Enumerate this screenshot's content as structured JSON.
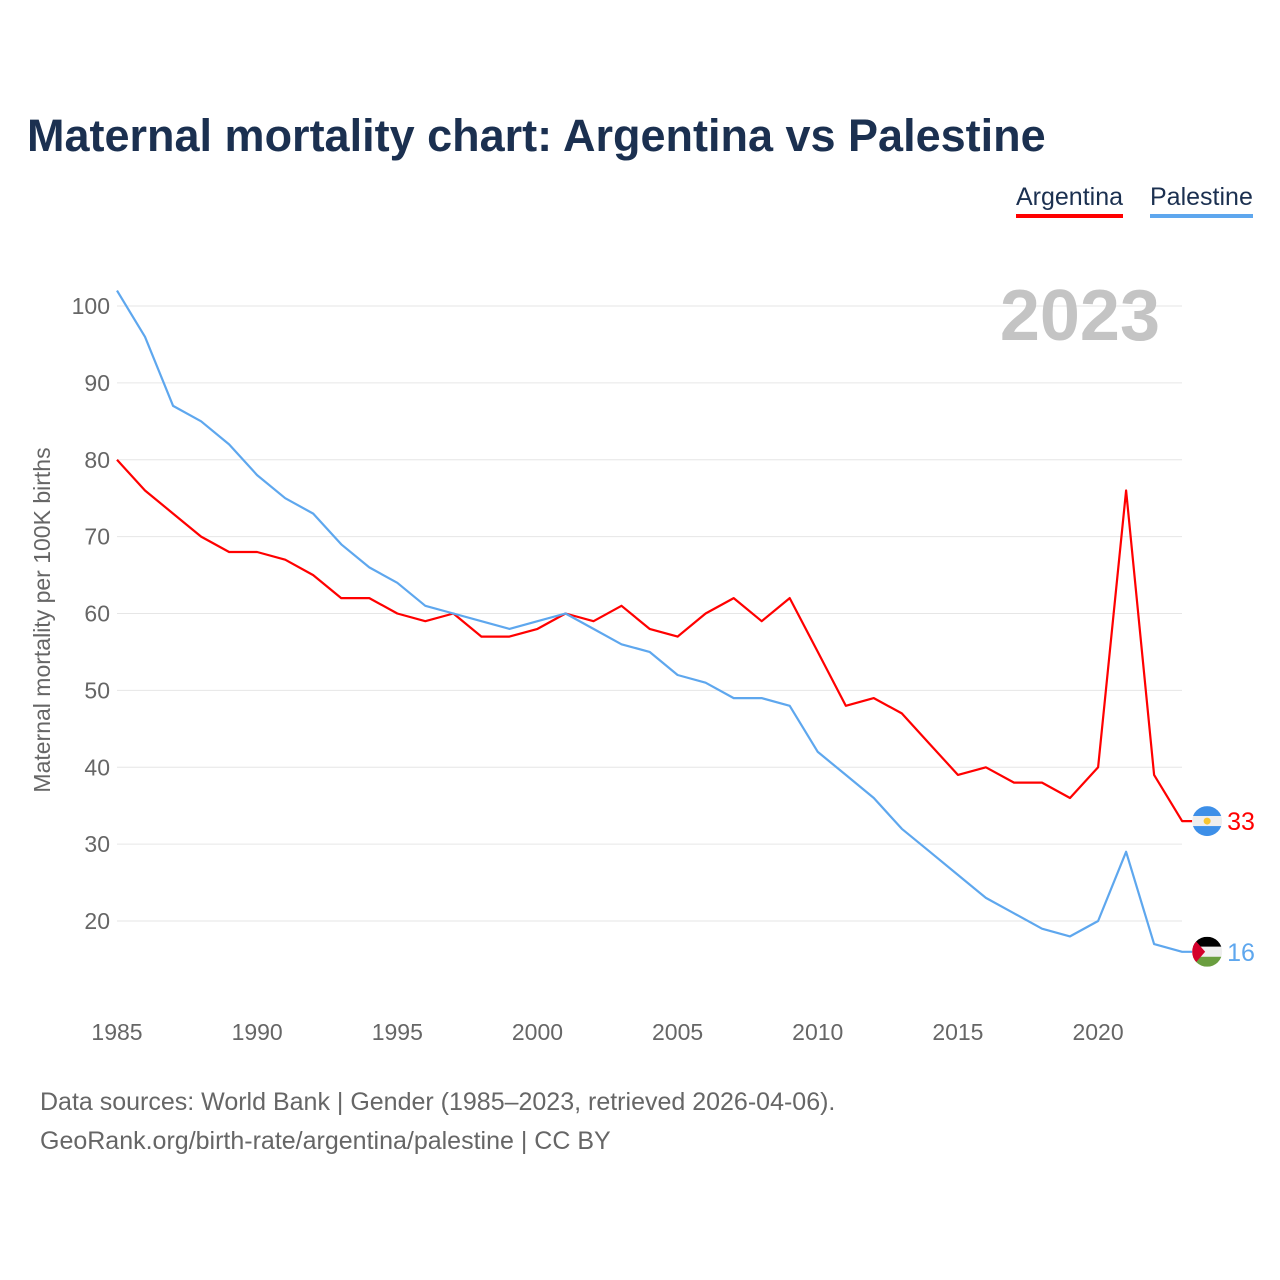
{
  "chart_data": {
    "type": "line",
    "title": "Maternal mortality chart: Argentina vs Palestine",
    "ylabel": "Maternal mortality per 100K births",
    "xlabel": "",
    "year_label": "2023",
    "x": [
      1985,
      1986,
      1987,
      1988,
      1989,
      1990,
      1991,
      1992,
      1993,
      1994,
      1995,
      1996,
      1997,
      1998,
      1999,
      2000,
      2001,
      2002,
      2003,
      2004,
      2005,
      2006,
      2007,
      2008,
      2009,
      2010,
      2011,
      2012,
      2013,
      2014,
      2015,
      2016,
      2017,
      2018,
      2019,
      2020,
      2021,
      2022,
      2023
    ],
    "xticks": [
      "1985",
      "1990",
      "1995",
      "2000",
      "2005",
      "2010",
      "2015",
      "2020"
    ],
    "yticks": [
      "20",
      "30",
      "40",
      "50",
      "60",
      "70",
      "80",
      "90",
      "100"
    ],
    "ylim": [
      10,
      102
    ],
    "xlim": [
      1985,
      2023
    ],
    "grid": true,
    "legend_placement": "top-right",
    "series": [
      {
        "name": "Argentina",
        "color": "#ff0000",
        "end_label": "33",
        "values": [
          80,
          76,
          73,
          70,
          68,
          68,
          67,
          65,
          62,
          62,
          60,
          59,
          60,
          57,
          57,
          58,
          60,
          59,
          61,
          58,
          57,
          60,
          62,
          59,
          62,
          55,
          48,
          49,
          47,
          43,
          39,
          40,
          38,
          38,
          36,
          40,
          76,
          39,
          33
        ]
      },
      {
        "name": "Palestine",
        "color": "#5ea7ee",
        "end_label": "16",
        "values": [
          102,
          96,
          87,
          85,
          82,
          78,
          75,
          73,
          69,
          66,
          64,
          61,
          60,
          59,
          58,
          59,
          60,
          58,
          56,
          55,
          52,
          51,
          49,
          49,
          48,
          42,
          39,
          36,
          32,
          29,
          26,
          23,
          21,
          19,
          18,
          20,
          29,
          17,
          16
        ]
      }
    ]
  },
  "footer": {
    "line1": "Data sources: World Bank | Gender (1985–2023, retrieved 2026-04-06).",
    "line2": "GeoRank.org/birth-rate/argentina/palestine | CC BY"
  }
}
